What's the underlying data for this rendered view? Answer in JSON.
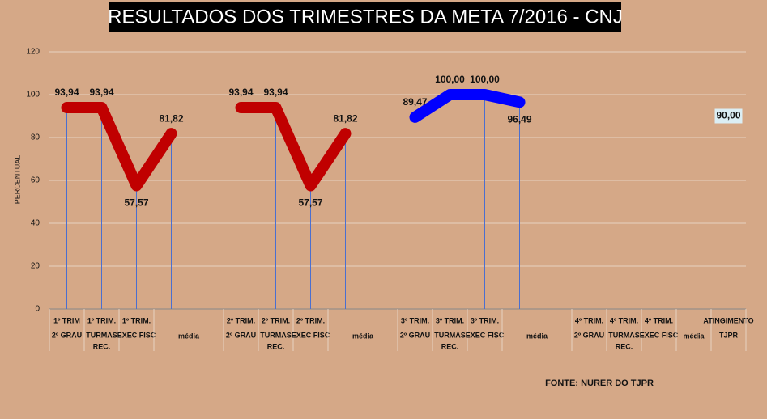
{
  "chart_data": {
    "type": "line",
    "title": "RESULTADOS DOS TRIMESTRES  DA META 7/2016 - CNJ",
    "y_label": "PERCENTUAL",
    "source": "FONTE: NURER DO TJPR",
    "categories": [
      [
        "1º TRIM",
        "2º GRAU"
      ],
      [
        "1º TRIM.",
        "TURMAS",
        "REC."
      ],
      [
        "1º TRIM.",
        "EXEC FISC"
      ],
      [
        "média"
      ],
      null,
      [
        "2º TRIM.",
        "2º GRAU"
      ],
      [
        "2º TRIM.",
        "TURMAS",
        "REC."
      ],
      [
        "2º TRIM.",
        "EXEC FISC"
      ],
      [
        "média"
      ],
      null,
      [
        "3º TRIM.",
        "2º GRAU"
      ],
      [
        "3º TRIM.",
        "TURMAS",
        "REC."
      ],
      [
        "3º TRIM.",
        "EXEC FISC"
      ],
      [
        "média"
      ],
      null,
      [
        "4º TRIM.",
        "2º GRAU"
      ],
      [
        "4º TRIM.",
        "TURMAS",
        "REC."
      ],
      [
        "4º TRIM.",
        "EXEC FISC"
      ],
      [
        "média"
      ],
      [
        "ATINGIMENTO",
        "TJPR"
      ]
    ],
    "series": [
      {
        "color": "#c00000",
        "values": [
          93.94,
          93.94,
          57.57,
          81.82,
          null,
          null,
          null,
          null,
          null,
          null,
          null,
          null,
          null,
          null,
          null,
          null,
          null,
          null,
          null,
          null
        ],
        "value_labels": [
          "93,94",
          "93,94",
          "57,57",
          "81,82",
          null,
          null,
          null,
          null,
          null,
          null,
          null,
          null,
          null,
          null,
          null,
          null,
          null,
          null,
          null,
          null
        ]
      },
      {
        "color": "#c00000",
        "values": [
          null,
          null,
          null,
          null,
          null,
          93.94,
          93.94,
          57.57,
          81.82,
          null,
          null,
          null,
          null,
          null,
          null,
          null,
          null,
          null,
          null,
          null
        ],
        "value_labels": [
          null,
          null,
          null,
          null,
          null,
          "93,94",
          "93,94",
          "57,57",
          "81,82",
          null,
          null,
          null,
          null,
          null,
          null,
          null,
          null,
          null,
          null,
          null
        ]
      },
      {
        "color": "#0000ff",
        "values": [
          null,
          null,
          null,
          null,
          null,
          null,
          null,
          null,
          null,
          null,
          89.47,
          100,
          100,
          96.49,
          null,
          null,
          null,
          null,
          null,
          null
        ],
        "value_labels": [
          null,
          null,
          null,
          null,
          null,
          null,
          null,
          null,
          null,
          null,
          "89,47",
          "100,00",
          "100,00",
          "96,49",
          null,
          null,
          null,
          null,
          null,
          null
        ]
      },
      {
        "color": "#dbeef4",
        "marker": "box",
        "values": [
          null,
          null,
          null,
          null,
          null,
          null,
          null,
          null,
          null,
          null,
          null,
          null,
          null,
          null,
          null,
          null,
          null,
          null,
          null,
          90
        ],
        "value_labels": [
          null,
          null,
          null,
          null,
          null,
          null,
          null,
          null,
          null,
          null,
          null,
          null,
          null,
          null,
          null,
          null,
          null,
          null,
          null,
          "90,00"
        ]
      }
    ],
    "ylim": [
      0,
      120
    ],
    "yticks": [
      0,
      20,
      40,
      60,
      80,
      100,
      120
    ],
    "grid": true
  }
}
